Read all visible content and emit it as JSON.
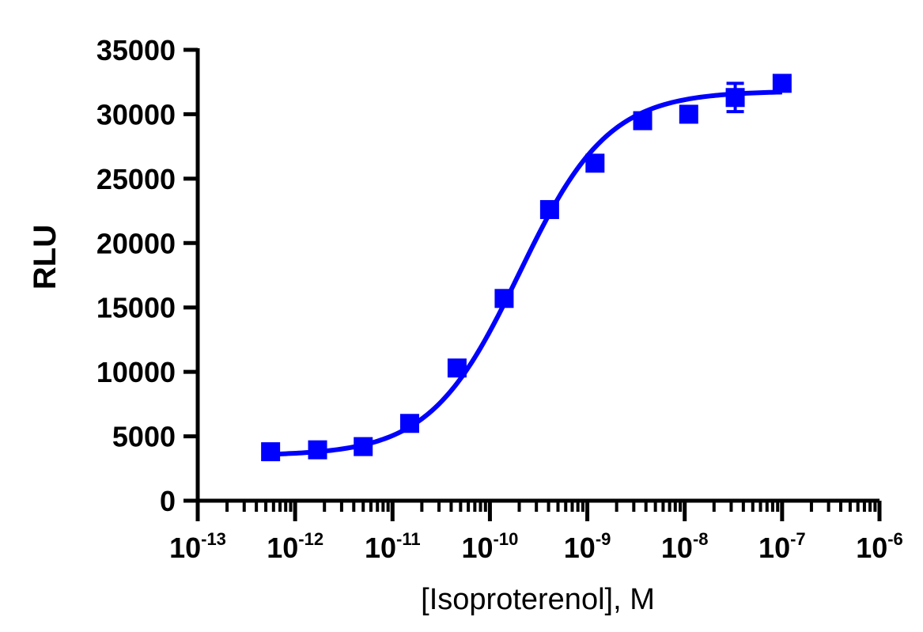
{
  "chart_data": {
    "type": "scatter",
    "title": "",
    "xlabel": "[Isoproterenol], M",
    "ylabel": "RLU",
    "x_scale": "log10",
    "xlim": [
      1e-13,
      1e-06
    ],
    "ylim": [
      0,
      35000
    ],
    "grid": false,
    "x_ticks": [
      {
        "base": "10",
        "exp": "-13",
        "value": 1e-13
      },
      {
        "base": "10",
        "exp": "-12",
        "value": 1e-12
      },
      {
        "base": "10",
        "exp": "-11",
        "value": 1e-11
      },
      {
        "base": "10",
        "exp": "-10",
        "value": 1e-10
      },
      {
        "base": "10",
        "exp": "-9",
        "value": 1e-09
      },
      {
        "base": "10",
        "exp": "-8",
        "value": 1e-08
      },
      {
        "base": "10",
        "exp": "-7",
        "value": 1e-07
      },
      {
        "base": "10",
        "exp": "-6",
        "value": 1e-06
      }
    ],
    "y_ticks": [
      {
        "label": "0",
        "value": 0
      },
      {
        "label": "5000",
        "value": 5000
      },
      {
        "label": "10000",
        "value": 10000
      },
      {
        "label": "15000",
        "value": 15000
      },
      {
        "label": "20000",
        "value": 20000
      },
      {
        "label": "25000",
        "value": 25000
      },
      {
        "label": "30000",
        "value": 30000
      },
      {
        "label": "35000",
        "value": 35000
      }
    ],
    "series": [
      {
        "color": "#0000ff",
        "marker": "square",
        "points": [
          {
            "x": 5.6e-13,
            "y": 3800,
            "err": 200
          },
          {
            "x": 1.7e-12,
            "y": 3950,
            "err": 200
          },
          {
            "x": 5e-12,
            "y": 4200,
            "err": 250
          },
          {
            "x": 1.5e-11,
            "y": 6000,
            "err": 250
          },
          {
            "x": 4.6e-11,
            "y": 10300,
            "err": 500
          },
          {
            "x": 1.4e-10,
            "y": 15700,
            "err": 300
          },
          {
            "x": 4.1e-10,
            "y": 22600,
            "err": 500
          },
          {
            "x": 1.2e-09,
            "y": 26200,
            "err": 300
          },
          {
            "x": 3.7e-09,
            "y": 29500,
            "err": 300
          },
          {
            "x": 1.1e-08,
            "y": 30000,
            "err": 300
          },
          {
            "x": 3.3e-08,
            "y": 31300,
            "err": 1100
          },
          {
            "x": 1e-07,
            "y": 32400,
            "err": 400
          }
        ]
      }
    ],
    "fit": {
      "type": "four-parameter-logistic",
      "bottom": 3500,
      "top": 31800,
      "ec50": 2e-10,
      "hill": 0.95,
      "x_range": [
        5.6e-13,
        1e-07
      ]
    }
  }
}
